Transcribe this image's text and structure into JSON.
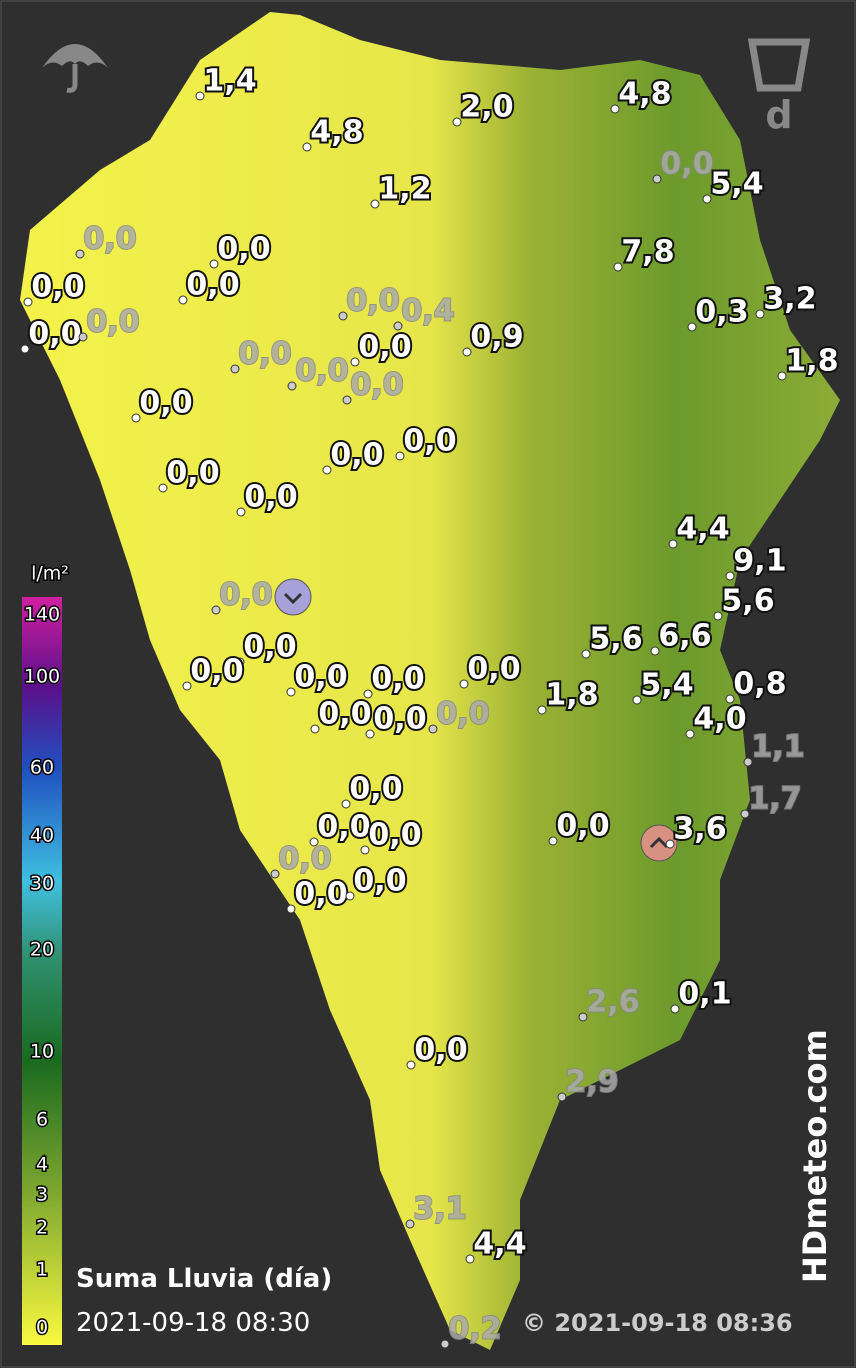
{
  "period": "d",
  "title": "Suma Lluvia (día)",
  "time": "2021-09-18 08:30",
  "copyright": "© 2021-09-18 08:36",
  "brand": "HDmeteo.com",
  "legend": {
    "unit": "l/m²",
    "ticks": [
      "140",
      "100",
      "60",
      "40",
      "30",
      "20",
      "10",
      "6",
      "4",
      "3",
      "2",
      "1",
      "0"
    ]
  },
  "stations": [
    "1,4",
    "2,0",
    "4,8",
    "4,8",
    "0,0",
    "5,4",
    "1,2",
    "0,0",
    "0,0",
    "7,8",
    "0,0",
    "0,0",
    "0,0",
    "0,4",
    "0,3",
    "3,2",
    "0,0",
    "0,0",
    "0,9",
    "0,0",
    "0,0",
    "0,0",
    "1,8",
    "0,0",
    "0,0",
    "0,0",
    "0,0",
    "0,0",
    "0,0",
    "4,4",
    "9,1",
    "0,0",
    "5,6",
    "5,6",
    "6,6",
    "0,0",
    "0,0",
    "0,0",
    "0,0",
    "0,0",
    "5,4",
    "0,8",
    "1,8",
    "0,0",
    "0,0",
    "0,0",
    "4,0",
    "1,1",
    "0,0",
    "1,7",
    "0,0",
    "0,0",
    "0,0",
    "3,6",
    "0,0",
    "0,0",
    "0,0",
    "0,1",
    "2,6",
    "0,0",
    "2,9",
    "3,1",
    "4,4",
    "0,2"
  ]
}
